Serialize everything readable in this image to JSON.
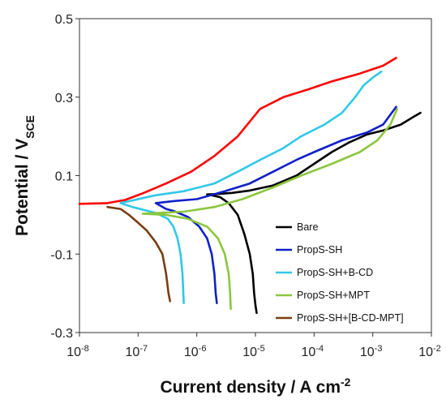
{
  "chart_data": {
    "type": "line",
    "xlabel": "Current density / A cm",
    "xlabel_sup": "-2",
    "ylabel": "Potential / V",
    "ylabel_sub": "SCE",
    "x_scale": "log",
    "xlim": [
      1e-08,
      0.01
    ],
    "ylim": [
      -0.3,
      0.5
    ],
    "x_ticks": [
      {
        "value": 1e-08,
        "base": "10",
        "exp": "-8"
      },
      {
        "value": 1e-07,
        "base": "10",
        "exp": "-7"
      },
      {
        "value": 1e-06,
        "base": "10",
        "exp": "-6"
      },
      {
        "value": 1e-05,
        "base": "10",
        "exp": "-5"
      },
      {
        "value": 0.0001,
        "base": "10",
        "exp": "-4"
      },
      {
        "value": 0.001,
        "base": "10",
        "exp": "-3"
      },
      {
        "value": 0.01,
        "base": "10",
        "exp": "-2"
      }
    ],
    "y_ticks": [
      {
        "value": 0.5,
        "label": "0.5"
      },
      {
        "value": 0.3,
        "label": "0.3"
      },
      {
        "value": 0.1,
        "label": "0.1"
      },
      {
        "value": -0.1,
        "label": "-0.1"
      },
      {
        "value": -0.3,
        "label": "-0.3"
      }
    ],
    "grid": false,
    "legend_position": "bottom-right",
    "series": [
      {
        "name": "Bare",
        "color": "#000000",
        "points": [
          [
            1.05e-05,
            -0.25
          ],
          [
            1e-05,
            -0.23
          ],
          [
            9.5e-06,
            -0.2
          ],
          [
            9e-06,
            -0.15
          ],
          [
            8e-06,
            -0.1
          ],
          [
            6.5e-06,
            -0.05
          ],
          [
            5e-06,
            0.0
          ],
          [
            3.5e-06,
            0.03
          ],
          [
            2.5e-06,
            0.045
          ],
          [
            1.8e-06,
            0.05
          ],
          [
            1.5e-06,
            0.052
          ],
          [
            2.2e-06,
            0.053
          ],
          [
            4e-06,
            0.056
          ],
          [
            8e-06,
            0.062
          ],
          [
            2e-05,
            0.075
          ],
          [
            5e-05,
            0.1
          ],
          [
            0.0001,
            0.13
          ],
          [
            0.0002,
            0.16
          ],
          [
            0.0004,
            0.185
          ],
          [
            0.0008,
            0.205
          ],
          [
            0.0015,
            0.215
          ],
          [
            0.003,
            0.23
          ],
          [
            0.005,
            0.25
          ],
          [
            0.0065,
            0.26
          ]
        ]
      },
      {
        "name": "PropS-SH",
        "color": "#1020c8",
        "points": [
          [
            2.2e-06,
            -0.225
          ],
          [
            2.1e-06,
            -0.2
          ],
          [
            2e-06,
            -0.15
          ],
          [
            1.8e-06,
            -0.1
          ],
          [
            1.5e-06,
            -0.06
          ],
          [
            1.1e-06,
            -0.03
          ],
          [
            7e-07,
            -0.005
          ],
          [
            4e-07,
            0.01
          ],
          [
            3e-07,
            0.015
          ],
          [
            2e-07,
            0.03
          ],
          [
            4e-07,
            0.035
          ],
          [
            1e-06,
            0.04
          ],
          [
            3e-06,
            0.06
          ],
          [
            8e-06,
            0.08
          ],
          [
            2e-05,
            0.11
          ],
          [
            5e-05,
            0.14
          ],
          [
            0.0001,
            0.16
          ],
          [
            0.0003,
            0.19
          ],
          [
            0.0008,
            0.21
          ],
          [
            0.0015,
            0.23
          ],
          [
            0.0025,
            0.275
          ]
        ]
      },
      {
        "name": "PropS-SH+B-CD",
        "color": "#30c8e8",
        "points": [
          [
            6e-07,
            -0.225
          ],
          [
            5.9e-07,
            -0.2
          ],
          [
            5.7e-07,
            -0.15
          ],
          [
            5.3e-07,
            -0.1
          ],
          [
            4.7e-07,
            -0.06
          ],
          [
            4e-07,
            -0.03
          ],
          [
            3.2e-07,
            -0.01
          ],
          [
            2e-07,
            0.005
          ],
          [
            8e-08,
            0.02
          ],
          [
            5e-08,
            0.03
          ],
          [
            2e-07,
            0.05
          ],
          [
            6e-07,
            0.06
          ],
          [
            2e-06,
            0.08
          ],
          [
            5e-06,
            0.11
          ],
          [
            1.2e-05,
            0.14
          ],
          [
            3e-05,
            0.17
          ],
          [
            6e-05,
            0.2
          ],
          [
            0.00015,
            0.23
          ],
          [
            0.0003,
            0.26
          ],
          [
            0.0005,
            0.3
          ],
          [
            0.0007,
            0.33
          ],
          [
            0.001,
            0.35
          ],
          [
            0.0014,
            0.365
          ]
        ]
      },
      {
        "name": "PropS-SH+MPT",
        "color": "#8cc63f",
        "points": [
          [
            3.8e-06,
            -0.24
          ],
          [
            3.7e-06,
            -0.2
          ],
          [
            3.5e-06,
            -0.15
          ],
          [
            3e-06,
            -0.1
          ],
          [
            2.3e-06,
            -0.06
          ],
          [
            1.5e-06,
            -0.03
          ],
          [
            7e-07,
            -0.01
          ],
          [
            3e-07,
            0.0
          ],
          [
            1.2e-07,
            0.003
          ],
          [
            6e-07,
            0.008
          ],
          [
            2e-06,
            0.02
          ],
          [
            6e-06,
            0.04
          ],
          [
            2e-05,
            0.07
          ],
          [
            6e-05,
            0.1
          ],
          [
            0.0002,
            0.13
          ],
          [
            0.0006,
            0.16
          ],
          [
            0.0012,
            0.19
          ],
          [
            0.002,
            0.23
          ],
          [
            0.0026,
            0.27
          ]
        ]
      },
      {
        "name": "PropS-SH+[B-CD-MPT]",
        "color": "#7a3e12",
        "points": [
          [
            3.5e-07,
            -0.22
          ],
          [
            3.3e-07,
            -0.2
          ],
          [
            3e-07,
            -0.15
          ],
          [
            2.6e-07,
            -0.1
          ],
          [
            2e-07,
            -0.07
          ],
          [
            1.4e-07,
            -0.04
          ],
          [
            1e-07,
            -0.02
          ],
          [
            7e-08,
            0.0
          ],
          [
            5e-08,
            0.015
          ],
          [
            3e-08,
            0.02
          ]
        ]
      },
      {
        "name": "",
        "color": "#ff0000",
        "points": [
          [
            1e-08,
            0.028
          ],
          [
            3e-08,
            0.03
          ],
          [
            6e-08,
            0.038
          ],
          [
            1.2e-07,
            0.055
          ],
          [
            3e-07,
            0.08
          ],
          [
            8e-07,
            0.11
          ],
          [
            2e-06,
            0.15
          ],
          [
            5e-06,
            0.2
          ],
          [
            1.2e-05,
            0.27
          ],
          [
            3e-05,
            0.3
          ],
          [
            8e-05,
            0.32
          ],
          [
            0.0002,
            0.34
          ],
          [
            0.0006,
            0.36
          ],
          [
            0.0015,
            0.38
          ],
          [
            0.0025,
            0.4
          ]
        ]
      }
    ]
  }
}
